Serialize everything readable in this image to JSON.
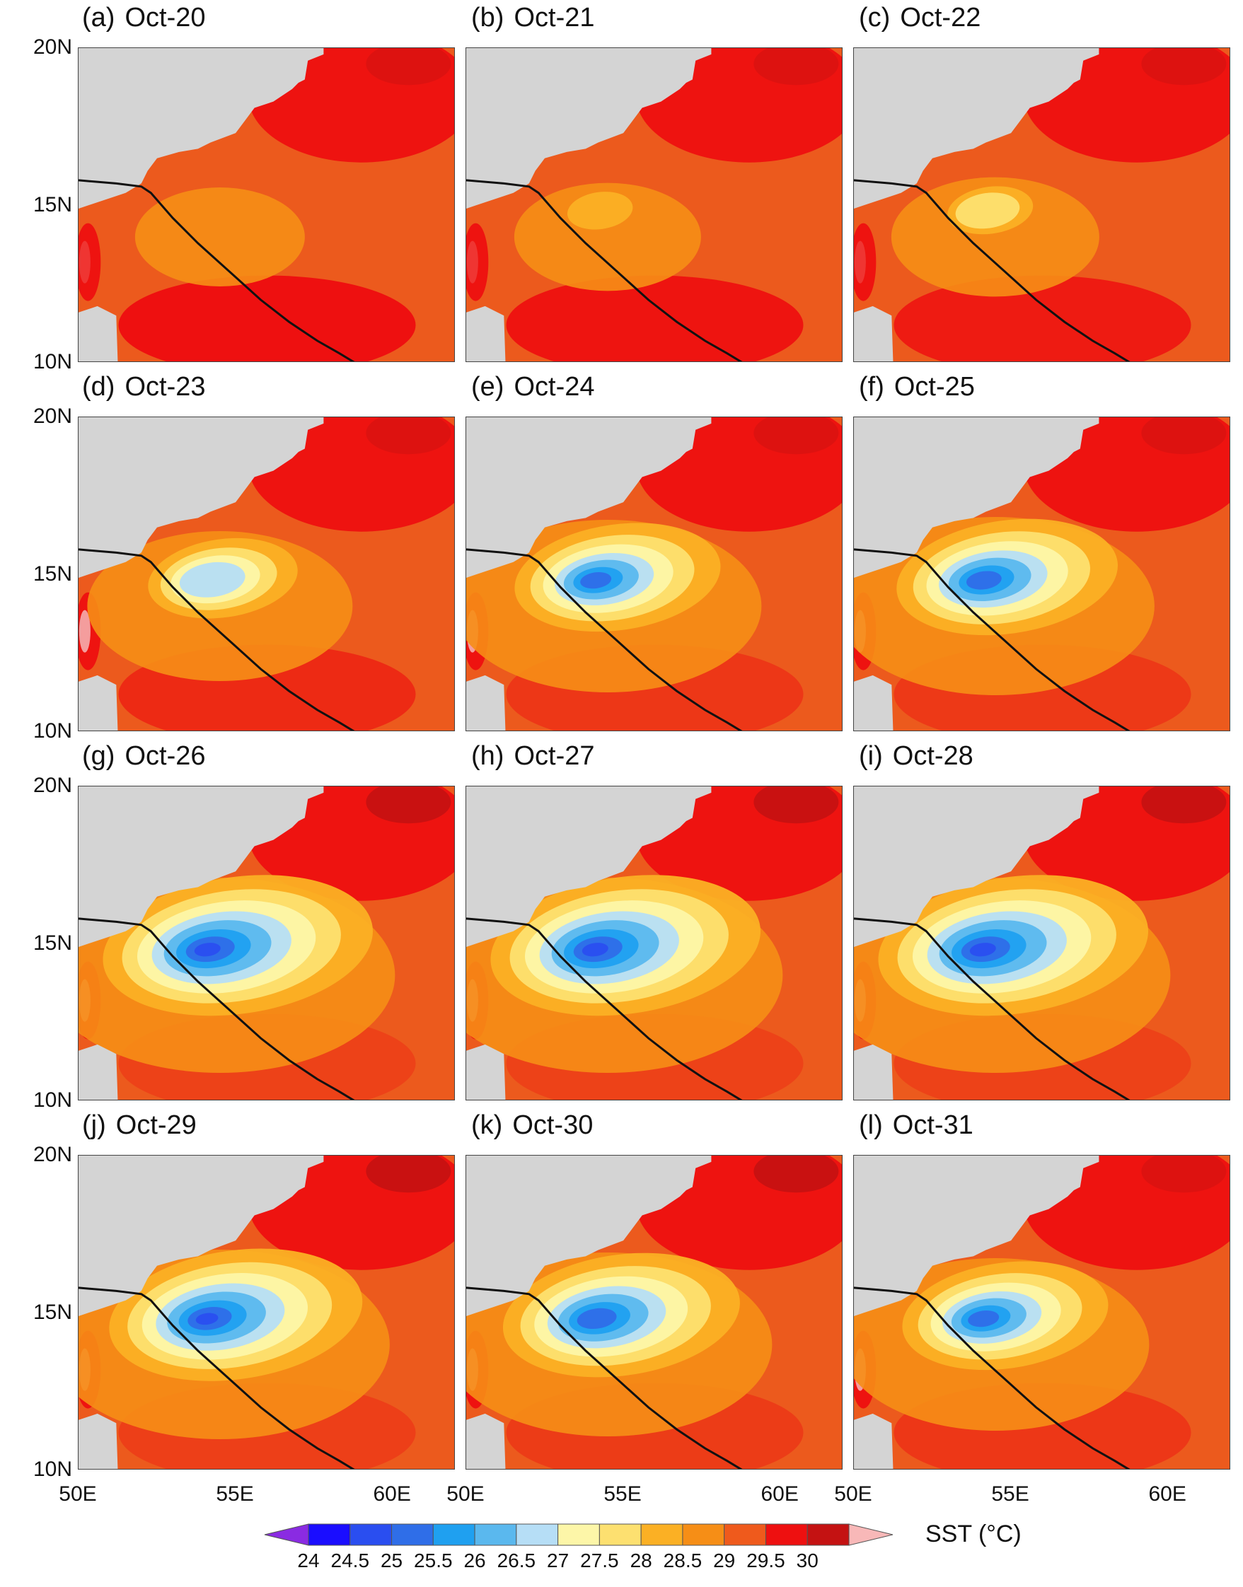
{
  "figure": {
    "variable_label": "SST (°C)",
    "lat_labels": [
      "20N",
      "15N",
      "10N"
    ],
    "lon_labels": [
      "50E",
      "55E",
      "60E"
    ],
    "colors": {
      "land": "#d4d4d4",
      "track": "#111111"
    }
  },
  "panels": [
    {
      "letter": "(a)",
      "date": "Oct-20",
      "cold": 0.0
    },
    {
      "letter": "(b)",
      "date": "Oct-21",
      "cold": 0.08
    },
    {
      "letter": "(c)",
      "date": "Oct-22",
      "cold": 0.18
    },
    {
      "letter": "(d)",
      "date": "Oct-23",
      "cold": 0.45
    },
    {
      "letter": "(e)",
      "date": "Oct-24",
      "cold": 0.65
    },
    {
      "letter": "(f)",
      "date": "Oct-25",
      "cold": 0.7
    },
    {
      "letter": "(g)",
      "date": "Oct-26",
      "cold": 0.85
    },
    {
      "letter": "(h)",
      "date": "Oct-27",
      "cold": 0.85
    },
    {
      "letter": "(i)",
      "date": "Oct-28",
      "cold": 0.85
    },
    {
      "letter": "(j)",
      "date": "Oct-29",
      "cold": 0.8
    },
    {
      "letter": "(k)",
      "date": "Oct-30",
      "cold": 0.75
    },
    {
      "letter": "(l)",
      "date": "Oct-31",
      "cold": 0.65
    }
  ],
  "colorbar": {
    "levels": [
      "24",
      "24.5",
      "25",
      "25.5",
      "26",
      "26.5",
      "27",
      "27.5",
      "28",
      "28.5",
      "29",
      "29.5",
      "30"
    ],
    "colors": [
      "#8a2be2",
      "#1a0dff",
      "#2a4ef0",
      "#2f6ee8",
      "#1fa0f0",
      "#5ab8ee",
      "#b6def6",
      "#fdf6a8",
      "#fde070",
      "#fbb024",
      "#f68e16",
      "#ef5a1c",
      "#ee1010",
      "#c41212",
      "#f8b8b8"
    ]
  }
}
